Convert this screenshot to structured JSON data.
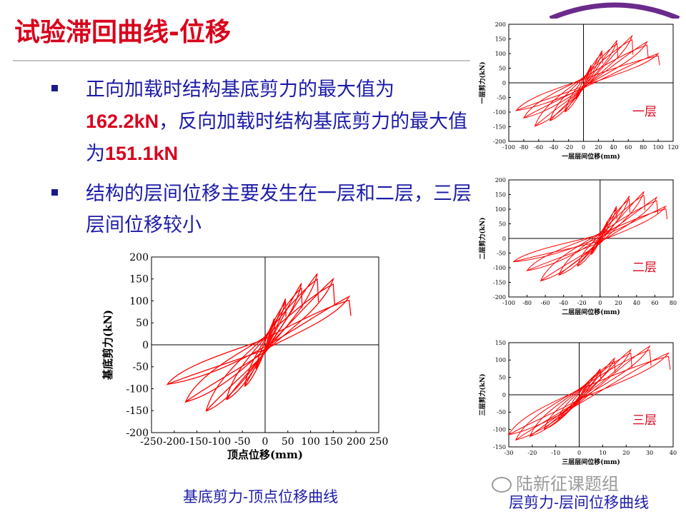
{
  "slide": {
    "title": "试验滞回曲线-位移",
    "bullets": [
      {
        "prefix": "正向加载时结构基底剪力的最大值为",
        "value1": "162.2kN",
        "middle": "，反向加载时结构基底剪力的最大值为",
        "value2": "151.1kN",
        "suffix": ""
      },
      {
        "text": "结构的层间位移主要发生在一层和二层，三层层间位移较小"
      }
    ],
    "caption_main": "基底剪力-顶点位移曲线",
    "caption_side": "层剪力-层间位移曲线",
    "watermark": "陆新征课题组",
    "colors": {
      "title": "#d9001b",
      "bullet_text": "#1c1ca8",
      "curve": "#ff0000",
      "highlight": "#d9001b"
    }
  },
  "chart_data": [
    {
      "type": "line",
      "description_key": "main",
      "xlabel": "顶点位移(mm)",
      "ylabel": "基底剪力(kN)",
      "xlim": [
        -250,
        250
      ],
      "ylim": [
        -200,
        200
      ],
      "xticks": [
        -250,
        -200,
        -150,
        -100,
        -50,
        0,
        50,
        100,
        150,
        200,
        250
      ],
      "yticks": [
        -200,
        -150,
        -100,
        -50,
        0,
        50,
        100,
        150,
        200
      ],
      "hysteresis_peaks": [
        {
          "x": 20,
          "y": 60,
          "nx": -20,
          "ny": -55
        },
        {
          "x": 45,
          "y": 105,
          "nx": -45,
          "ny": -95
        },
        {
          "x": 80,
          "y": 140,
          "nx": -85,
          "ny": -125
        },
        {
          "x": 115,
          "y": 162.2,
          "nx": -130,
          "ny": -151.1
        },
        {
          "x": 150,
          "y": 150,
          "nx": -175,
          "ny": -130
        },
        {
          "x": 185,
          "y": 110,
          "nx": -215,
          "ny": -90
        }
      ]
    },
    {
      "type": "line",
      "description_key": "floor1",
      "xlabel": "一层层间位移(mm)",
      "ylabel": "一层剪力(kN)",
      "label": "一层",
      "xlim": [
        -100,
        120
      ],
      "ylim": [
        -200,
        200
      ],
      "xticks": [
        -100,
        -80,
        -60,
        -40,
        -20,
        0,
        20,
        40,
        60,
        80,
        100,
        120
      ],
      "yticks": [
        -200,
        -150,
        -100,
        -50,
        0,
        50,
        100,
        150,
        200
      ],
      "hysteresis_peaks": [
        {
          "x": 10,
          "y": 60,
          "nx": -10,
          "ny": -55
        },
        {
          "x": 25,
          "y": 110,
          "nx": -25,
          "ny": -100
        },
        {
          "x": 45,
          "y": 145,
          "nx": -45,
          "ny": -130
        },
        {
          "x": 65,
          "y": 160,
          "nx": -65,
          "ny": -148
        },
        {
          "x": 85,
          "y": 140,
          "nx": -80,
          "ny": -120
        },
        {
          "x": 100,
          "y": 100,
          "nx": -90,
          "ny": -95
        }
      ]
    },
    {
      "type": "line",
      "description_key": "floor2",
      "xlabel": "二层层间位移(mm)",
      "ylabel": "二层剪力(kN)",
      "label": "二层",
      "xlim": [
        -100,
        80
      ],
      "ylim": [
        -200,
        200
      ],
      "xticks": [
        -100,
        -80,
        -60,
        -40,
        -20,
        0,
        20,
        40,
        60,
        80
      ],
      "yticks": [
        -200,
        -150,
        -100,
        -50,
        0,
        50,
        100,
        150,
        200
      ],
      "hysteresis_peaks": [
        {
          "x": 8,
          "y": 60,
          "nx": -10,
          "ny": -55
        },
        {
          "x": 18,
          "y": 110,
          "nx": -25,
          "ny": -95
        },
        {
          "x": 32,
          "y": 145,
          "nx": -45,
          "ny": -125
        },
        {
          "x": 48,
          "y": 160,
          "nx": -65,
          "ny": -145
        },
        {
          "x": 62,
          "y": 140,
          "nx": -80,
          "ny": -110
        },
        {
          "x": 72,
          "y": 110,
          "nx": -95,
          "ny": -80
        }
      ]
    },
    {
      "type": "line",
      "description_key": "floor3",
      "xlabel": "三层层间位移(mm)",
      "ylabel": "三层剪力(kN)",
      "label": "三层",
      "xlim": [
        -30,
        40
      ],
      "ylim": [
        -150,
        150
      ],
      "xticks": [
        -30,
        -20,
        -10,
        0,
        10,
        20,
        30,
        40
      ],
      "yticks": [
        -150,
        -100,
        -50,
        0,
        50,
        100,
        150
      ],
      "hysteresis_peaks": [
        {
          "x": 4,
          "y": 40,
          "nx": -4,
          "ny": -40
        },
        {
          "x": 9,
          "y": 75,
          "nx": -9,
          "ny": -70
        },
        {
          "x": 15,
          "y": 105,
          "nx": -15,
          "ny": -100
        },
        {
          "x": 22,
          "y": 130,
          "nx": -21,
          "ny": -120
        },
        {
          "x": 30,
          "y": 140,
          "nx": -27,
          "ny": -130
        },
        {
          "x": 38,
          "y": 120,
          "nx": -30,
          "ny": -115
        }
      ]
    }
  ]
}
